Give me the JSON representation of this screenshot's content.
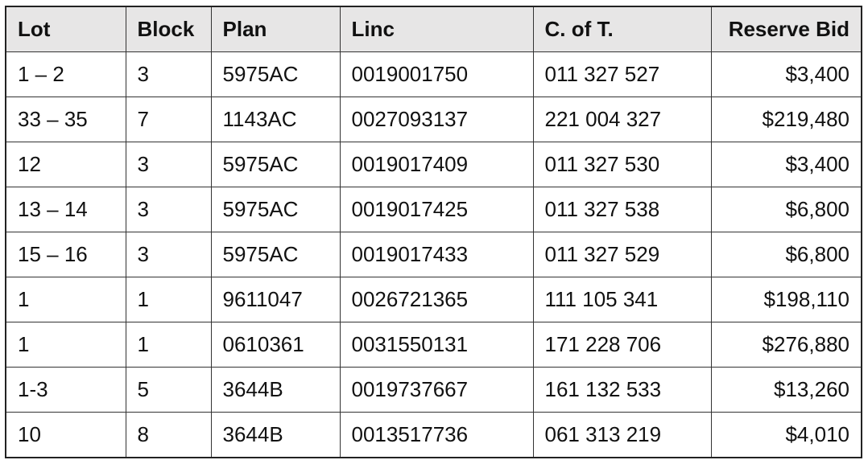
{
  "table": {
    "headers": [
      "Lot",
      "Block",
      "Plan",
      "Linc",
      "C. of T.",
      "Reserve Bid"
    ],
    "rows": [
      [
        "1 – 2",
        "3",
        "5975AC",
        "0019001750",
        "011 327 527",
        "$3,400"
      ],
      [
        "33 – 35",
        "7",
        "1143AC",
        "0027093137",
        "221 004 327",
        "$219,480"
      ],
      [
        "12",
        "3",
        "5975AC",
        "0019017409",
        "011 327 530",
        "$3,400"
      ],
      [
        "13 – 14",
        "3",
        "5975AC",
        "0019017425",
        "011 327 538",
        "$6,800"
      ],
      [
        "15 – 16",
        "3",
        "5975AC",
        "0019017433",
        "011 327 529",
        "$6,800"
      ],
      [
        "1",
        "1",
        "9611047",
        "0026721365",
        "111 105 341",
        "$198,110"
      ],
      [
        "1",
        "1",
        "0610361",
        "0031550131",
        "171 228 706",
        "$276,880"
      ],
      [
        "1-3",
        "5",
        "3644B",
        "0019737667",
        "161 132 533",
        "$13,260"
      ],
      [
        "10",
        "8",
        "3644B",
        "0013517736",
        "061 313 219",
        "$4,010"
      ]
    ],
    "header_bg": "#e7e6e6"
  }
}
